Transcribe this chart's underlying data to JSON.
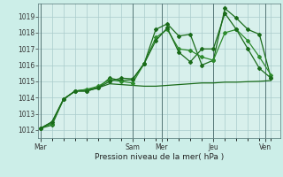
{
  "bg_color": "#cceee8",
  "plot_bg": "#d8f0ec",
  "grid_color": "#aacccc",
  "line_color_dark": "#1a6b1a",
  "line_color_medium": "#2d8b2d",
  "xlabel": "Pression niveau de la mer( hPa )",
  "ylim": [
    1011.5,
    1019.8
  ],
  "yticks": [
    1012,
    1013,
    1014,
    1015,
    1016,
    1017,
    1018,
    1019
  ],
  "day_labels": [
    "Mar",
    "Sam",
    "Mer",
    "Jeu",
    "Ven"
  ],
  "day_tick_positions": [
    0.0,
    8.0,
    10.5,
    15.0,
    19.5
  ],
  "vline_positions": [
    0.0,
    8.0,
    10.5,
    15.0,
    19.5
  ],
  "xmin": -0.2,
  "xmax": 20.8,
  "series1_x": [
    0,
    1,
    2,
    3,
    4,
    5,
    6,
    7,
    8,
    9,
    10,
    11,
    12,
    13,
    14,
    15,
    16,
    17,
    18,
    19,
    20
  ],
  "series1_y": [
    1012.1,
    1012.3,
    1013.9,
    1014.4,
    1014.4,
    1014.6,
    1015.2,
    1015.05,
    1015.1,
    1016.1,
    1018.2,
    1018.55,
    1017.8,
    1017.9,
    1016.0,
    1016.3,
    1019.5,
    1018.9,
    1018.2,
    1017.9,
    1015.2
  ],
  "series2_x": [
    0,
    1,
    2,
    3,
    4,
    5,
    6,
    7,
    8,
    9,
    10,
    11,
    12,
    13,
    14,
    15,
    16,
    17,
    18,
    19,
    20
  ],
  "series2_y": [
    1012.1,
    1012.4,
    1013.9,
    1014.4,
    1014.5,
    1014.7,
    1015.1,
    1015.0,
    1014.9,
    1016.1,
    1017.7,
    1018.2,
    1017.0,
    1016.9,
    1016.5,
    1016.3,
    1018.0,
    1018.2,
    1017.5,
    1016.5,
    1015.4
  ],
  "series3_x": [
    0,
    1,
    2,
    3,
    4,
    5,
    6,
    7,
    8,
    9,
    10,
    11,
    12,
    13,
    14,
    15,
    16,
    17,
    18,
    19,
    20
  ],
  "series3_y": [
    1012.1,
    1012.5,
    1013.9,
    1014.4,
    1014.5,
    1014.6,
    1014.85,
    1014.8,
    1014.75,
    1014.7,
    1014.7,
    1014.75,
    1014.8,
    1014.85,
    1014.9,
    1014.9,
    1014.95,
    1014.95,
    1014.98,
    1015.0,
    1015.05
  ],
  "series4_x": [
    0,
    1,
    2,
    3,
    4,
    5,
    6,
    7,
    8,
    9,
    10,
    11,
    12,
    13,
    14,
    15,
    16,
    17,
    18,
    19,
    20
  ],
  "series4_y": [
    1012.1,
    1012.5,
    1013.9,
    1014.4,
    1014.4,
    1014.6,
    1015.0,
    1015.2,
    1015.15,
    1016.1,
    1017.5,
    1018.3,
    1016.8,
    1016.2,
    1017.0,
    1017.0,
    1019.2,
    1018.2,
    1017.0,
    1015.8,
    1015.2
  ]
}
